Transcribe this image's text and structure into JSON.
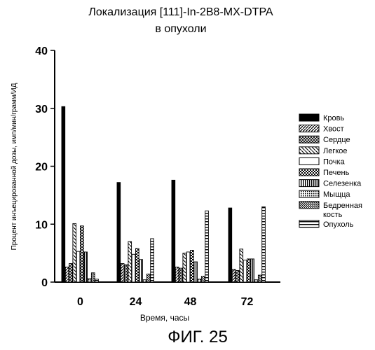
{
  "chart_data": {
    "type": "bar",
    "title": "Локализация [111]-In-2B8-MX-DTPA",
    "subtitle": "в опухоли",
    "xlabel": "Время, часы",
    "ylabel": "Процент инъецированной дозы, имп/мин/грамм/ИД",
    "caption": "ФИГ. 25",
    "categories": [
      "0",
      "24",
      "48",
      "72"
    ],
    "yticks": [
      "0",
      "10",
      "20",
      "30",
      "40"
    ],
    "ylim": [
      0,
      40
    ],
    "grid": false,
    "legend_position": "right",
    "series": [
      {
        "name": "Кровь",
        "pattern": "solid",
        "values": [
          30.3,
          17.2,
          17.6,
          12.8
        ]
      },
      {
        "name": "Хвост",
        "pattern": "diag-right",
        "values": [
          2.6,
          3.2,
          2.6,
          2.2
        ]
      },
      {
        "name": "Сердце",
        "pattern": "cross-hatch",
        "values": [
          3.2,
          3.0,
          2.4,
          2.0
        ]
      },
      {
        "name": "Легкое",
        "pattern": "diag-left",
        "values": [
          10.1,
          7.0,
          5.0,
          5.7
        ]
      },
      {
        "name": "Почка",
        "pattern": "open",
        "values": [
          5.3,
          4.8,
          5.2,
          3.8
        ]
      },
      {
        "name": "Печень",
        "pattern": "checker",
        "values": [
          9.7,
          5.8,
          5.5,
          4.0
        ]
      },
      {
        "name": "Селезенка",
        "pattern": "vertical",
        "values": [
          5.2,
          3.9,
          3.5,
          4.0
        ]
      },
      {
        "name": "Мыщца",
        "pattern": "dotted",
        "values": [
          0.6,
          0.4,
          0.5,
          0.4
        ]
      },
      {
        "name": "Бедренная кость",
        "pattern": "diag-dense",
        "values": [
          1.6,
          1.4,
          1.0,
          1.2
        ]
      },
      {
        "name": "Опухоль",
        "pattern": "horizontal",
        "values": [
          0.5,
          7.5,
          12.3,
          13.0
        ]
      }
    ]
  }
}
